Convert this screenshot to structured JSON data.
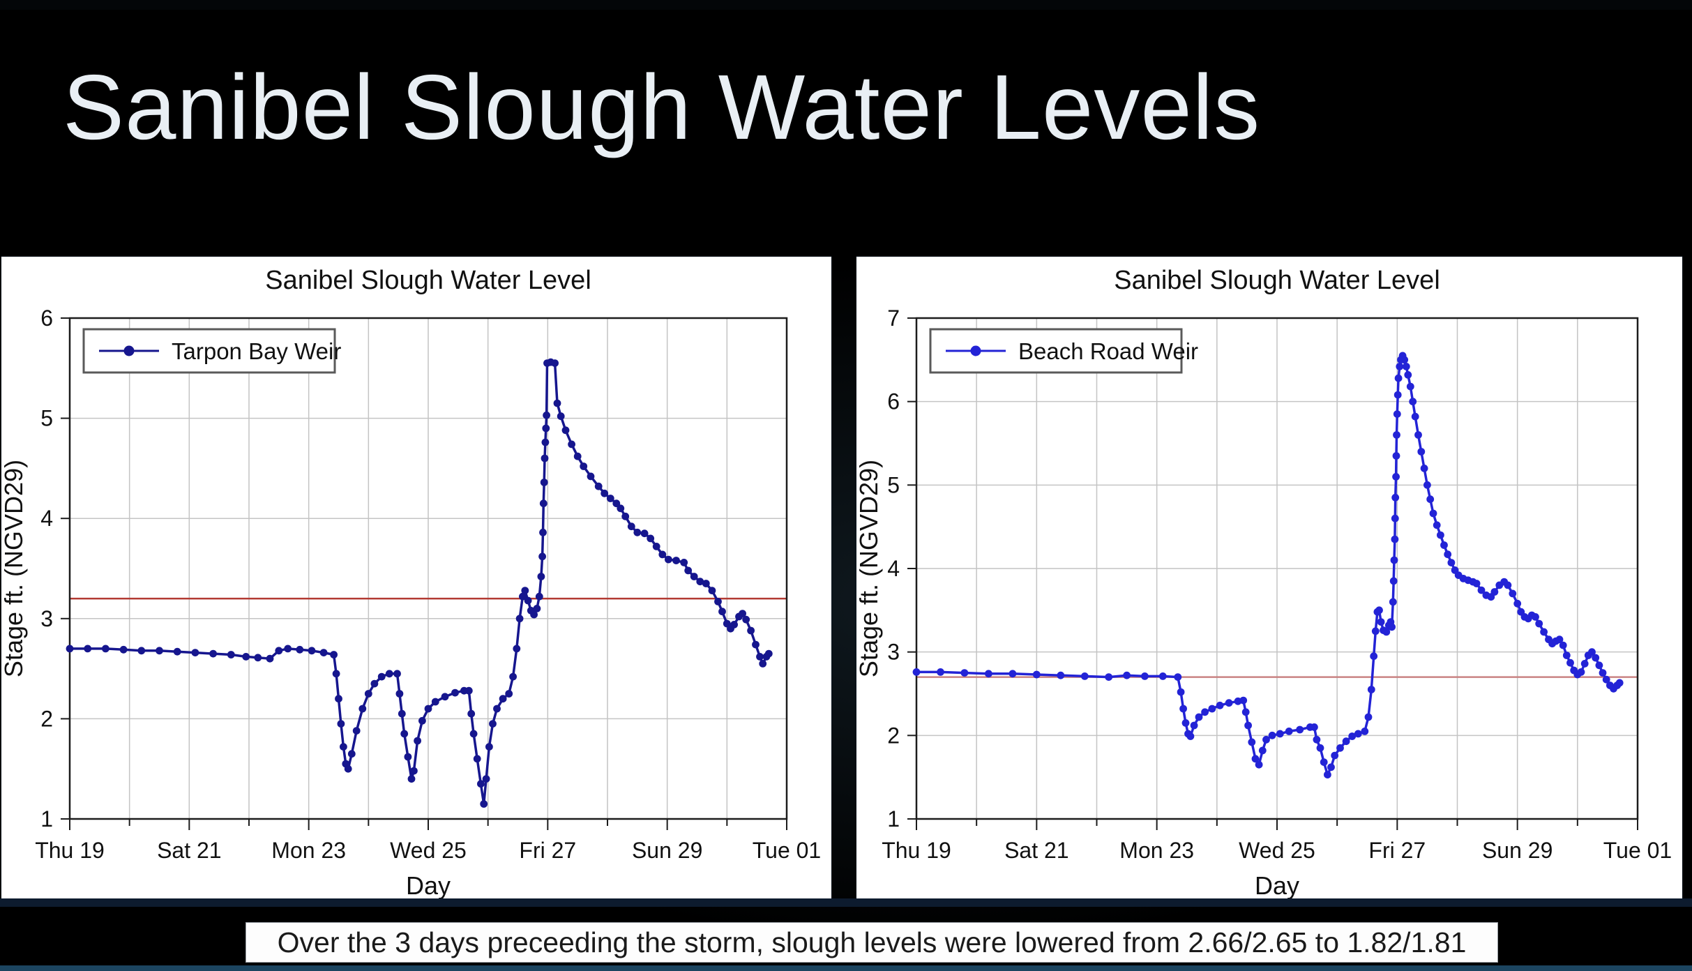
{
  "slide": {
    "title": "Sanibel Slough Water Levels",
    "caption": "Over the 3 days preceeding the storm, slough levels were lowered from 2.66/2.65 to 1.82/1.81"
  },
  "chart_data": [
    {
      "type": "line",
      "title": "Sanibel Slough Water Level",
      "xlabel": "Day",
      "ylabel": "Stage ft. (NGVD29)",
      "legend": "Tarpon Bay Weir",
      "series_color": "#16168e",
      "ref_line": {
        "value": 3.2,
        "color": "#b23a32"
      },
      "xlim": [
        19,
        31
      ],
      "ylim": [
        1,
        6
      ],
      "grid": true,
      "legend_position": "top-left",
      "x_tick_labels": [
        {
          "day": 19,
          "label": "Thu 19"
        },
        {
          "day": 21,
          "label": "Sat 21"
        },
        {
          "day": 23,
          "label": "Mon 23"
        },
        {
          "day": 25,
          "label": "Wed 25"
        },
        {
          "day": 27,
          "label": "Fri 27"
        },
        {
          "day": 29,
          "label": "Sun 29"
        },
        {
          "day": 31,
          "label": "Tue 01"
        }
      ],
      "points": [
        [
          19.0,
          2.7
        ],
        [
          19.3,
          2.7
        ],
        [
          19.6,
          2.7
        ],
        [
          19.9,
          2.69
        ],
        [
          20.2,
          2.68
        ],
        [
          20.5,
          2.68
        ],
        [
          20.8,
          2.67
        ],
        [
          21.1,
          2.66
        ],
        [
          21.4,
          2.65
        ],
        [
          21.7,
          2.64
        ],
        [
          21.95,
          2.62
        ],
        [
          22.15,
          2.61
        ],
        [
          22.35,
          2.6
        ],
        [
          22.5,
          2.68
        ],
        [
          22.65,
          2.7
        ],
        [
          22.85,
          2.69
        ],
        [
          23.05,
          2.68
        ],
        [
          23.25,
          2.66
        ],
        [
          23.42,
          2.64
        ],
        [
          23.46,
          2.45
        ],
        [
          23.5,
          2.2
        ],
        [
          23.54,
          1.95
        ],
        [
          23.58,
          1.72
        ],
        [
          23.62,
          1.55
        ],
        [
          23.66,
          1.5
        ],
        [
          23.72,
          1.65
        ],
        [
          23.8,
          1.88
        ],
        [
          23.9,
          2.1
        ],
        [
          24.0,
          2.25
        ],
        [
          24.1,
          2.35
        ],
        [
          24.22,
          2.42
        ],
        [
          24.35,
          2.45
        ],
        [
          24.48,
          2.45
        ],
        [
          24.52,
          2.25
        ],
        [
          24.56,
          2.05
        ],
        [
          24.6,
          1.85
        ],
        [
          24.66,
          1.62
        ],
        [
          24.72,
          1.4
        ],
        [
          24.76,
          1.48
        ],
        [
          24.82,
          1.78
        ],
        [
          24.9,
          1.98
        ],
        [
          25.0,
          2.1
        ],
        [
          25.12,
          2.17
        ],
        [
          25.28,
          2.22
        ],
        [
          25.45,
          2.26
        ],
        [
          25.6,
          2.28
        ],
        [
          25.68,
          2.28
        ],
        [
          25.72,
          2.05
        ],
        [
          25.76,
          1.85
        ],
        [
          25.82,
          1.6
        ],
        [
          25.88,
          1.35
        ],
        [
          25.93,
          1.15
        ],
        [
          25.97,
          1.4
        ],
        [
          26.02,
          1.72
        ],
        [
          26.08,
          1.95
        ],
        [
          26.15,
          2.1
        ],
        [
          26.25,
          2.2
        ],
        [
          26.35,
          2.25
        ],
        [
          26.42,
          2.42
        ],
        [
          26.48,
          2.7
        ],
        [
          26.53,
          3.0
        ],
        [
          26.58,
          3.22
        ],
        [
          26.62,
          3.28
        ],
        [
          26.67,
          3.18
        ],
        [
          26.72,
          3.08
        ],
        [
          26.77,
          3.04
        ],
        [
          26.82,
          3.1
        ],
        [
          26.86,
          3.22
        ],
        [
          26.89,
          3.42
        ],
        [
          26.91,
          3.62
        ],
        [
          26.92,
          3.86
        ],
        [
          26.93,
          4.15
        ],
        [
          26.94,
          4.36
        ],
        [
          26.95,
          4.6
        ],
        [
          26.96,
          4.76
        ],
        [
          26.97,
          4.9
        ],
        [
          26.98,
          5.03
        ],
        [
          26.99,
          5.55
        ],
        [
          27.05,
          5.56
        ],
        [
          27.12,
          5.55
        ],
        [
          27.16,
          5.15
        ],
        [
          27.22,
          5.02
        ],
        [
          27.3,
          4.88
        ],
        [
          27.4,
          4.74
        ],
        [
          27.5,
          4.62
        ],
        [
          27.6,
          4.52
        ],
        [
          27.72,
          4.42
        ],
        [
          27.85,
          4.32
        ],
        [
          27.95,
          4.25
        ],
        [
          28.05,
          4.2
        ],
        [
          28.15,
          4.15
        ],
        [
          28.22,
          4.1
        ],
        [
          28.3,
          4.02
        ],
        [
          28.4,
          3.92
        ],
        [
          28.5,
          3.86
        ],
        [
          28.62,
          3.85
        ],
        [
          28.72,
          3.8
        ],
        [
          28.82,
          3.72
        ],
        [
          28.92,
          3.64
        ],
        [
          29.02,
          3.59
        ],
        [
          29.15,
          3.58
        ],
        [
          29.28,
          3.56
        ],
        [
          29.35,
          3.48
        ],
        [
          29.45,
          3.42
        ],
        [
          29.55,
          3.37
        ],
        [
          29.65,
          3.35
        ],
        [
          29.75,
          3.28
        ],
        [
          29.85,
          3.17
        ],
        [
          29.92,
          3.07
        ],
        [
          30.0,
          2.95
        ],
        [
          30.06,
          2.9
        ],
        [
          30.12,
          2.94
        ],
        [
          30.2,
          3.02
        ],
        [
          30.26,
          3.05
        ],
        [
          30.32,
          2.99
        ],
        [
          30.4,
          2.88
        ],
        [
          30.48,
          2.74
        ],
        [
          30.55,
          2.62
        ],
        [
          30.6,
          2.55
        ],
        [
          30.66,
          2.62
        ],
        [
          30.7,
          2.65
        ]
      ]
    },
    {
      "type": "line",
      "title": "Sanibel Slough Water Level",
      "xlabel": "Day",
      "ylabel": "Stage ft. (NGVD29)",
      "legend": "Beach Road Weir",
      "series_color": "#2323d6",
      "ref_line": {
        "value": 2.7,
        "color": "#c98383"
      },
      "xlim": [
        19,
        31
      ],
      "ylim": [
        1,
        7
      ],
      "grid": true,
      "legend_position": "top-left",
      "x_tick_labels": [
        {
          "day": 19,
          "label": "Thu 19"
        },
        {
          "day": 21,
          "label": "Sat 21"
        },
        {
          "day": 23,
          "label": "Mon 23"
        },
        {
          "day": 25,
          "label": "Wed 25"
        },
        {
          "day": 27,
          "label": "Fri 27"
        },
        {
          "day": 29,
          "label": "Sun 29"
        },
        {
          "day": 31,
          "label": "Tue 01"
        }
      ],
      "points": [
        [
          19.0,
          2.76
        ],
        [
          19.4,
          2.76
        ],
        [
          19.8,
          2.75
        ],
        [
          20.2,
          2.74
        ],
        [
          20.6,
          2.74
        ],
        [
          21.0,
          2.73
        ],
        [
          21.4,
          2.72
        ],
        [
          21.8,
          2.71
        ],
        [
          22.2,
          2.7
        ],
        [
          22.5,
          2.72
        ],
        [
          22.8,
          2.71
        ],
        [
          23.1,
          2.71
        ],
        [
          23.35,
          2.7
        ],
        [
          23.4,
          2.52
        ],
        [
          23.44,
          2.32
        ],
        [
          23.48,
          2.15
        ],
        [
          23.52,
          2.02
        ],
        [
          23.56,
          1.99
        ],
        [
          23.62,
          2.12
        ],
        [
          23.7,
          2.22
        ],
        [
          23.8,
          2.28
        ],
        [
          23.92,
          2.32
        ],
        [
          24.05,
          2.36
        ],
        [
          24.2,
          2.39
        ],
        [
          24.35,
          2.41
        ],
        [
          24.44,
          2.42
        ],
        [
          24.48,
          2.28
        ],
        [
          24.52,
          2.12
        ],
        [
          24.58,
          1.92
        ],
        [
          24.64,
          1.72
        ],
        [
          24.7,
          1.65
        ],
        [
          24.76,
          1.82
        ],
        [
          24.82,
          1.95
        ],
        [
          24.92,
          2.0
        ],
        [
          25.05,
          2.02
        ],
        [
          25.2,
          2.05
        ],
        [
          25.38,
          2.07
        ],
        [
          25.55,
          2.1
        ],
        [
          25.62,
          2.1
        ],
        [
          25.66,
          1.95
        ],
        [
          25.72,
          1.85
        ],
        [
          25.78,
          1.68
        ],
        [
          25.84,
          1.53
        ],
        [
          25.9,
          1.62
        ],
        [
          25.96,
          1.76
        ],
        [
          26.05,
          1.85
        ],
        [
          26.15,
          1.93
        ],
        [
          26.25,
          1.99
        ],
        [
          26.35,
          2.02
        ],
        [
          26.46,
          2.05
        ],
        [
          26.52,
          2.22
        ],
        [
          26.57,
          2.55
        ],
        [
          26.61,
          2.95
        ],
        [
          26.64,
          3.25
        ],
        [
          26.67,
          3.48
        ],
        [
          26.7,
          3.5
        ],
        [
          26.73,
          3.36
        ],
        [
          26.77,
          3.26
        ],
        [
          26.82,
          3.24
        ],
        [
          26.86,
          3.32
        ],
        [
          26.89,
          3.36
        ],
        [
          26.91,
          3.3
        ],
        [
          26.93,
          3.6
        ],
        [
          26.94,
          3.85
        ],
        [
          26.95,
          4.1
        ],
        [
          26.96,
          4.35
        ],
        [
          26.965,
          4.6
        ],
        [
          26.97,
          4.85
        ],
        [
          26.98,
          5.1
        ],
        [
          26.985,
          5.35
        ],
        [
          26.99,
          5.6
        ],
        [
          27.0,
          5.85
        ],
        [
          27.01,
          6.08
        ],
        [
          27.02,
          6.28
        ],
        [
          27.04,
          6.42
        ],
        [
          27.06,
          6.5
        ],
        [
          27.09,
          6.55
        ],
        [
          27.12,
          6.5
        ],
        [
          27.15,
          6.42
        ],
        [
          27.18,
          6.32
        ],
        [
          27.22,
          6.18
        ],
        [
          27.26,
          6.0
        ],
        [
          27.3,
          5.82
        ],
        [
          27.35,
          5.6
        ],
        [
          27.4,
          5.4
        ],
        [
          27.45,
          5.2
        ],
        [
          27.5,
          5.0
        ],
        [
          27.55,
          4.83
        ],
        [
          27.6,
          4.66
        ],
        [
          27.66,
          4.52
        ],
        [
          27.72,
          4.4
        ],
        [
          27.78,
          4.28
        ],
        [
          27.84,
          4.17
        ],
        [
          27.9,
          4.07
        ],
        [
          27.96,
          3.98
        ],
        [
          28.02,
          3.92
        ],
        [
          28.1,
          3.88
        ],
        [
          28.18,
          3.86
        ],
        [
          28.26,
          3.84
        ],
        [
          28.32,
          3.82
        ],
        [
          28.4,
          3.74
        ],
        [
          28.48,
          3.68
        ],
        [
          28.56,
          3.66
        ],
        [
          28.62,
          3.72
        ],
        [
          28.7,
          3.8
        ],
        [
          28.78,
          3.84
        ],
        [
          28.84,
          3.8
        ],
        [
          28.92,
          3.7
        ],
        [
          29.0,
          3.58
        ],
        [
          29.06,
          3.48
        ],
        [
          29.12,
          3.42
        ],
        [
          29.18,
          3.4
        ],
        [
          29.24,
          3.44
        ],
        [
          29.3,
          3.42
        ],
        [
          29.36,
          3.34
        ],
        [
          29.44,
          3.24
        ],
        [
          29.52,
          3.15
        ],
        [
          29.58,
          3.1
        ],
        [
          29.64,
          3.13
        ],
        [
          29.7,
          3.15
        ],
        [
          29.76,
          3.08
        ],
        [
          29.82,
          2.96
        ],
        [
          29.88,
          2.87
        ],
        [
          29.94,
          2.78
        ],
        [
          30.0,
          2.73
        ],
        [
          30.06,
          2.76
        ],
        [
          30.12,
          2.86
        ],
        [
          30.18,
          2.96
        ],
        [
          30.24,
          3.0
        ],
        [
          30.3,
          2.93
        ],
        [
          30.36,
          2.84
        ],
        [
          30.42,
          2.75
        ],
        [
          30.48,
          2.67
        ],
        [
          30.54,
          2.6
        ],
        [
          30.6,
          2.56
        ],
        [
          30.66,
          2.6
        ],
        [
          30.7,
          2.63
        ]
      ]
    }
  ]
}
